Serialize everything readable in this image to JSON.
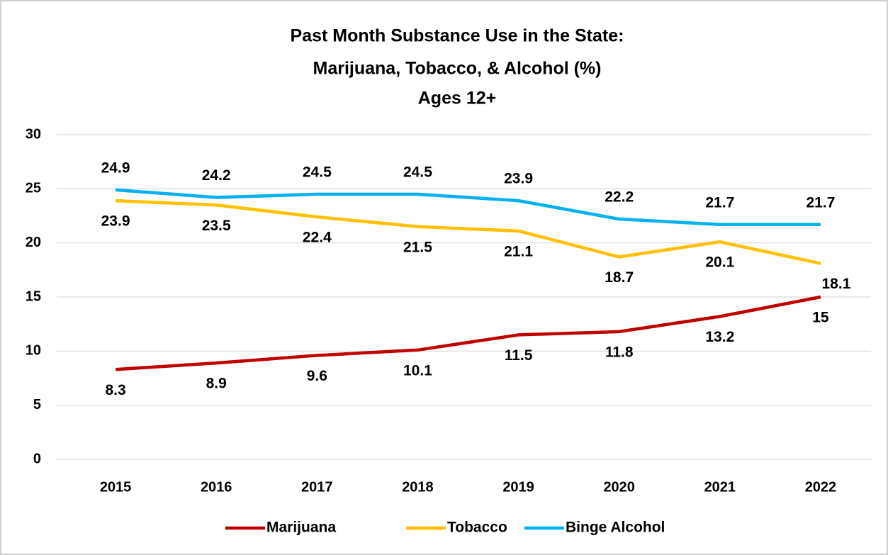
{
  "chart_data": {
    "type": "line",
    "title": [
      "Past Month Substance Use in the State:",
      "Marijuana, Tobacco, & Alcohol (%)"
    ],
    "subtitle": "Ages 12+",
    "categories": [
      "2015",
      "2016",
      "2017",
      "2018",
      "2019",
      "2020",
      "2021",
      "2022"
    ],
    "series": [
      {
        "name": "Marijuana",
        "color": "#c00000",
        "values": [
          8.3,
          8.9,
          9.6,
          10.1,
          11.5,
          11.8,
          13.2,
          15
        ]
      },
      {
        "name": "Tobacco",
        "color": "#ffc000",
        "values": [
          23.9,
          23.5,
          22.4,
          21.5,
          21.1,
          18.7,
          20.1,
          18.1
        ]
      },
      {
        "name": "Binge Alcohol",
        "color": "#00b0f0",
        "values": [
          24.9,
          24.2,
          24.5,
          24.5,
          23.9,
          22.2,
          21.7,
          21.7
        ]
      }
    ],
    "ylim": [
      0,
      30
    ],
    "yticks": [
      0,
      5,
      10,
      15,
      20,
      25,
      30
    ],
    "grid": true,
    "legend": "bottom"
  }
}
